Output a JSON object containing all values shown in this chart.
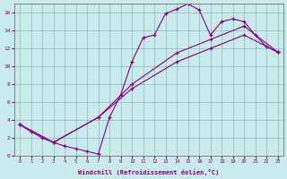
{
  "xlabel": "Windchill (Refroidissement éolien,°C)",
  "background_color": "#c8eaea",
  "line_color": "#880088",
  "xlim": [
    -0.5,
    23.5
  ],
  "ylim": [
    0,
    17
  ],
  "xticks": [
    0,
    1,
    2,
    3,
    4,
    5,
    6,
    7,
    8,
    9,
    10,
    11,
    12,
    13,
    14,
    15,
    16,
    17,
    18,
    19,
    20,
    21,
    22,
    23
  ],
  "yticks": [
    0,
    2,
    4,
    6,
    8,
    10,
    12,
    14,
    16
  ],
  "curve1_x": [
    0,
    1,
    2,
    3,
    4,
    5,
    6,
    7,
    8,
    9,
    10,
    11,
    12,
    13,
    14,
    15,
    16,
    17,
    18,
    19,
    20,
    21,
    22,
    23
  ],
  "curve1_y": [
    3.5,
    2.7,
    2.0,
    1.5,
    1.1,
    0.8,
    0.5,
    0.2,
    4.3,
    6.8,
    10.5,
    13.2,
    13.5,
    15.9,
    16.4,
    17.0,
    16.3,
    13.5,
    15.0,
    15.3,
    15.0,
    13.5,
    12.2,
    11.6
  ],
  "curve2_x": [
    0,
    3,
    7,
    10,
    14,
    17,
    20,
    23
  ],
  "curve2_y": [
    3.5,
    1.5,
    4.3,
    8.0,
    11.5,
    13.0,
    14.5,
    11.6
  ],
  "curve3_x": [
    0,
    3,
    7,
    10,
    14,
    17,
    20,
    23
  ],
  "curve3_y": [
    3.5,
    1.5,
    4.3,
    7.5,
    10.5,
    12.0,
    13.5,
    11.6
  ]
}
